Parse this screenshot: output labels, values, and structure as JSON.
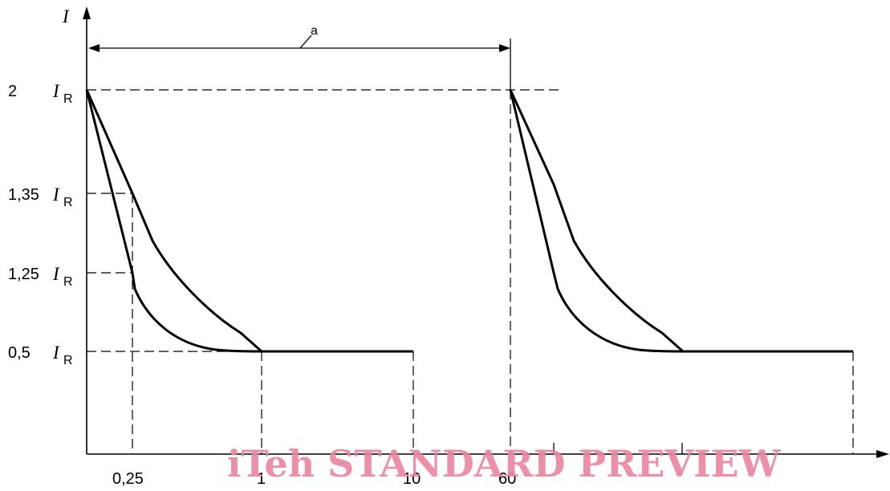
{
  "axes": {
    "y_label": "I",
    "x_ticks": [
      "0,25",
      "1",
      "10",
      "60"
    ]
  },
  "levels": [
    {
      "coef": "2",
      "sym": "I",
      "sub": "R"
    },
    {
      "coef": "1,35",
      "sym": "I",
      "sub": "R"
    },
    {
      "coef": "1,25",
      "sym": "I",
      "sub": "R"
    },
    {
      "coef": "0,5",
      "sym": "I",
      "sub": "R"
    }
  ],
  "interval_label": "a",
  "watermark": "iTeh STANDARD PREVIEW"
}
